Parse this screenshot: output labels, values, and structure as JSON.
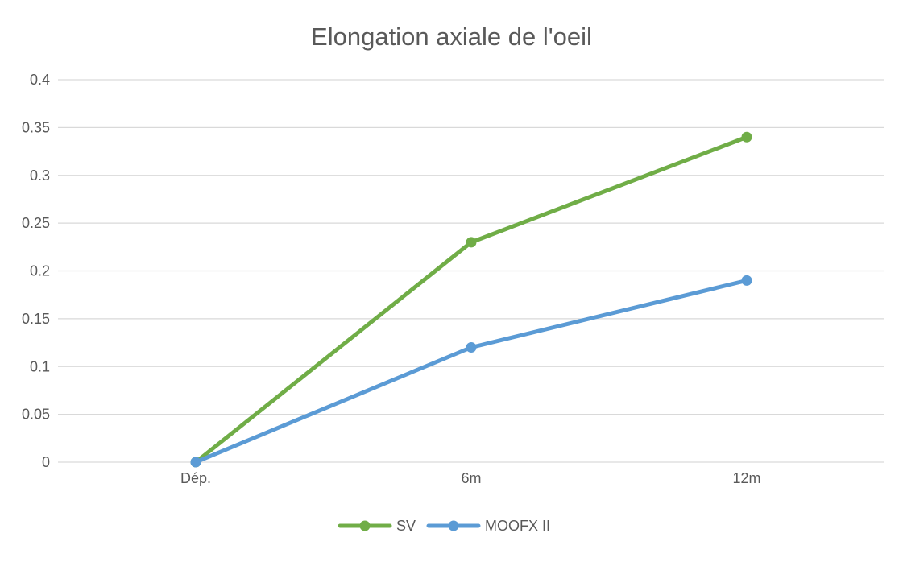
{
  "chart_data": {
    "type": "line",
    "title": "Elongation axiale de l'oeil",
    "categories": [
      "Dép.",
      "6m",
      "12m"
    ],
    "series": [
      {
        "name": "SV",
        "values": [
          0,
          0.23,
          0.34
        ],
        "color": "#70AD47"
      },
      {
        "name": "MOOFX II",
        "values": [
          0,
          0.12,
          0.19
        ],
        "color": "#5B9BD5"
      }
    ],
    "ylim": [
      0,
      0.4
    ],
    "yticks": [
      "0",
      "0.05",
      "0.1",
      "0.15",
      "0.2",
      "0.25",
      "0.3",
      "0.35",
      "0.4"
    ],
    "ytick_values": [
      0,
      0.05,
      0.1,
      0.15,
      0.2,
      0.25,
      0.3,
      0.35,
      0.4
    ],
    "grid": true,
    "legend_position": "bottom"
  }
}
